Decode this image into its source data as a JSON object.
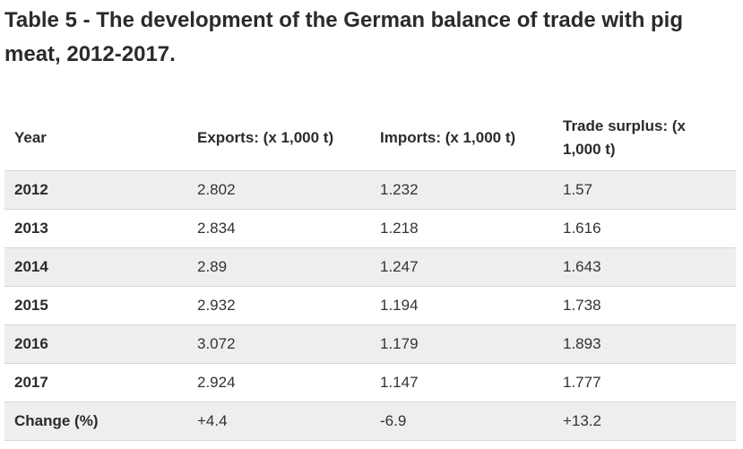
{
  "title": "Table 5 - The development of the German balance of trade with pig meat, 2012-2017.",
  "table": {
    "headers": [
      "Year",
      "Exports: (x 1,000 t)",
      "Imports: (x 1,000 t)",
      "Trade surplus: (x 1,000 t)"
    ],
    "rows": [
      [
        "2012",
        "2.802",
        "1.232",
        "1.57"
      ],
      [
        "2013",
        "2.834",
        "1.218",
        "1.616"
      ],
      [
        "2014",
        "2.89",
        "1.247",
        "1.643"
      ],
      [
        "2015",
        "2.932",
        "1.194",
        "1.738"
      ],
      [
        "2016",
        "3.072",
        "1.179",
        "1.893"
      ],
      [
        "2017",
        "2.924",
        "1.147",
        "1.777"
      ],
      [
        "Change (%)",
        "+4.4",
        "-6.9",
        "+13.2"
      ]
    ]
  }
}
